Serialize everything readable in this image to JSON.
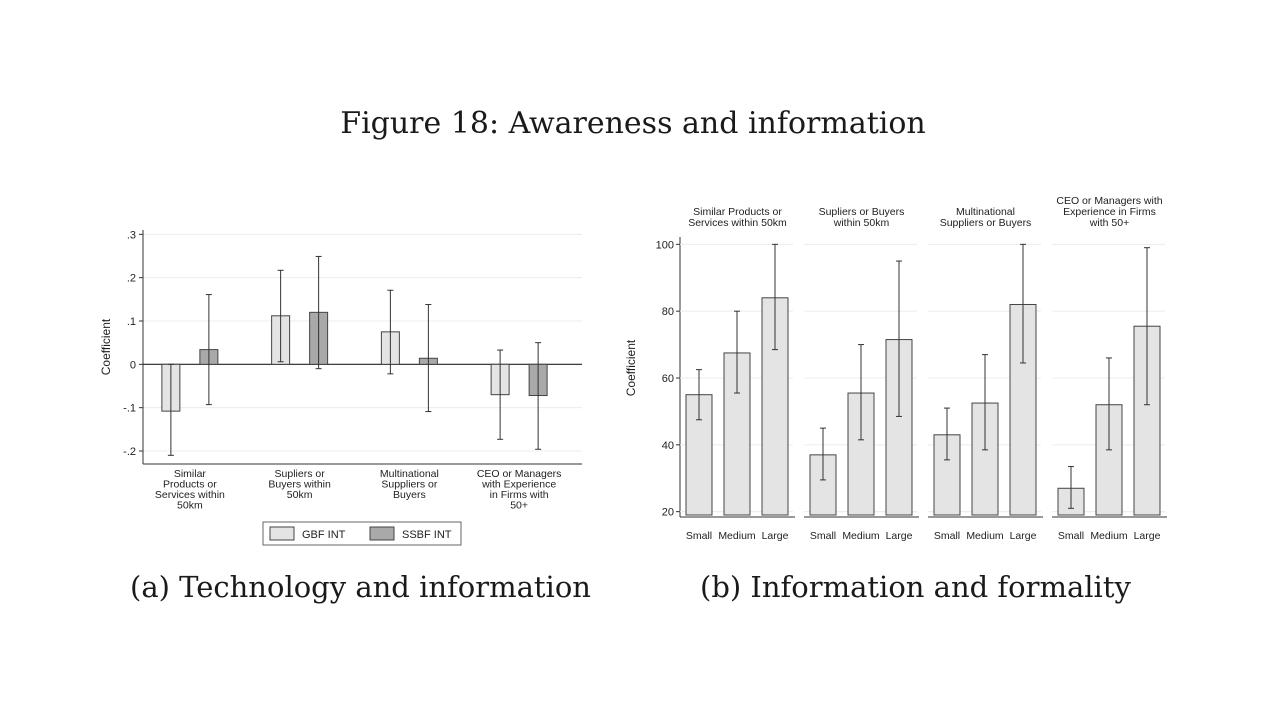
{
  "figure_title": "Figure 18: Awareness and information",
  "captions": {
    "a": "(a) Technology and information",
    "b": "(b) Information and formality"
  },
  "chart_data": [
    {
      "type": "bar",
      "ylabel": "Coefficient",
      "ylim": [
        -0.23,
        0.31
      ],
      "y_ticks": [
        {
          "value": 0.3,
          "label": ".3"
        },
        {
          "value": 0.2,
          "label": ".2"
        },
        {
          "value": 0.1,
          "label": ".1"
        },
        {
          "value": 0,
          "label": "0"
        },
        {
          "value": -0.1,
          "label": "-.1"
        },
        {
          "value": -0.2,
          "label": "-.2"
        }
      ],
      "grid": true,
      "legend_position": "bottom",
      "categories": [
        [
          "Similar",
          "Products or",
          "Services within",
          "50km"
        ],
        [
          "Supliers or",
          "Buyers within",
          "50km"
        ],
        [
          "Multinational",
          "Suppliers or",
          "Buyers"
        ],
        [
          "CEO or Managers",
          "with Experience",
          "in Firms with",
          "50+"
        ]
      ],
      "series": [
        {
          "name": "GBF INT",
          "color": "#e4e4e4",
          "values": [
            -0.108,
            0.112,
            0.075,
            -0.07
          ],
          "ci_low": [
            -0.21,
            0.006,
            -0.022,
            -0.173
          ],
          "ci_high": [
            0.0,
            0.217,
            0.171,
            0.033
          ]
        },
        {
          "name": "SSBF INT",
          "color": "#a9a9a9",
          "values": [
            0.034,
            0.12,
            0.014,
            -0.072
          ],
          "ci_low": [
            -0.093,
            -0.01,
            -0.109,
            -0.196
          ],
          "ci_high": [
            0.161,
            0.249,
            0.138,
            0.05
          ]
        }
      ]
    },
    {
      "type": "bar",
      "ylabel": "Coefficient",
      "ylim": [
        19,
        101
      ],
      "y_ticks": [
        {
          "value": 100,
          "label": "100"
        },
        {
          "value": 80,
          "label": "80"
        },
        {
          "value": 60,
          "label": "60"
        },
        {
          "value": 40,
          "label": "40"
        },
        {
          "value": 20,
          "label": "20"
        }
      ],
      "grid": true,
      "categories": [
        "Small",
        "Medium",
        "Large"
      ],
      "panels": [
        {
          "title": [
            "Similar Products or",
            "Services within 50km"
          ],
          "values": [
            55,
            67.5,
            84
          ],
          "ci_low": [
            47.5,
            55.5,
            68.5
          ],
          "ci_high": [
            62.5,
            80,
            100
          ]
        },
        {
          "title": [
            "Supliers or Buyers",
            "within 50km"
          ],
          "values": [
            37,
            55.5,
            71.5
          ],
          "ci_low": [
            29.5,
            41.5,
            48.5
          ],
          "ci_high": [
            45,
            70,
            95
          ]
        },
        {
          "title": [
            "Multinational",
            "Suppliers or Buyers"
          ],
          "values": [
            43,
            52.5,
            82
          ],
          "ci_low": [
            35.5,
            38.5,
            64.5
          ],
          "ci_high": [
            51,
            67,
            100
          ]
        },
        {
          "title": [
            "CEO or Managers with",
            "Experience in Firms",
            "with 50+"
          ],
          "values": [
            27,
            52,
            75.5
          ],
          "ci_low": [
            21,
            38.5,
            52
          ],
          "ci_high": [
            33.5,
            66,
            99
          ]
        }
      ]
    }
  ]
}
